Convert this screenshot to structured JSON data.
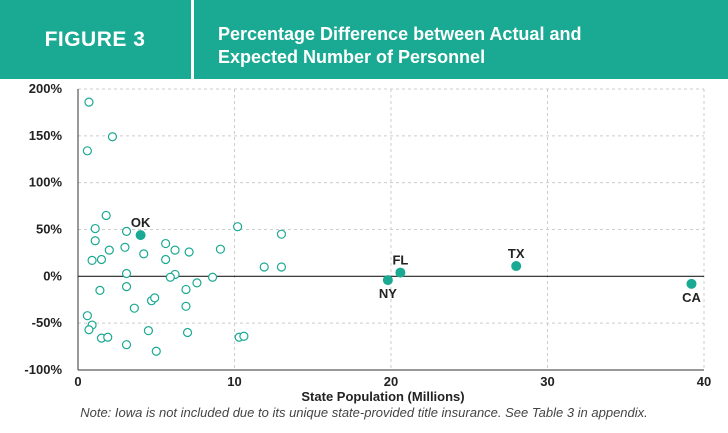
{
  "figure": {
    "label": "FIGURE 3",
    "title_line1": "Percentage Difference between Actual and",
    "title_line2": "Expected Number of Personnel"
  },
  "note": "Note: Iowa is not included due to its unique state-provided title insurance. See Table 3 in appendix.",
  "colors": {
    "brand": "#1aa992",
    "marker": "#1aa992",
    "zero_line": "#222222",
    "grid": "#cccccc"
  },
  "chart_data": {
    "type": "scatter",
    "title": "Percentage Difference between Actual and Expected Number of Personnel",
    "xlabel": "State Population (Millions)",
    "ylabel": "",
    "xlim": [
      0,
      40
    ],
    "ylim": [
      -100,
      200
    ],
    "x_ticks": [
      0,
      10,
      20,
      30,
      40
    ],
    "y_ticks": [
      -100,
      -50,
      0,
      50,
      100,
      150,
      200
    ],
    "y_tick_labels": [
      "-100%",
      "-50%",
      "0%",
      "50%",
      "100%",
      "150%",
      "200%"
    ],
    "x_tick_labels": [
      "0",
      "10",
      "20",
      "30",
      "40"
    ],
    "grid": "dashed",
    "series": [
      {
        "style": "open",
        "points": [
          [
            0.7,
            186
          ],
          [
            0.6,
            134
          ],
          [
            2.2,
            149
          ],
          [
            1.8,
            65
          ],
          [
            1.1,
            51
          ],
          [
            3.1,
            48
          ],
          [
            1.1,
            38
          ],
          [
            0.9,
            17
          ],
          [
            1.5,
            18
          ],
          [
            2.0,
            28
          ],
          [
            3.0,
            31
          ],
          [
            4.2,
            24
          ],
          [
            5.6,
            35
          ],
          [
            6.2,
            28
          ],
          [
            7.1,
            26
          ],
          [
            5.6,
            18
          ],
          [
            9.1,
            29
          ],
          [
            10.2,
            53
          ],
          [
            13.0,
            45
          ],
          [
            11.9,
            10
          ],
          [
            13.0,
            10
          ],
          [
            3.1,
            3
          ],
          [
            6.2,
            2
          ],
          [
            5.9,
            -1
          ],
          [
            8.6,
            -1
          ],
          [
            1.4,
            -15
          ],
          [
            3.1,
            -11
          ],
          [
            6.9,
            -14
          ],
          [
            7.6,
            -7
          ],
          [
            4.7,
            -26
          ],
          [
            4.9,
            -23
          ],
          [
            3.6,
            -34
          ],
          [
            6.9,
            -32
          ],
          [
            0.6,
            -42
          ],
          [
            0.9,
            -52
          ],
          [
            0.7,
            -57
          ],
          [
            4.5,
            -58
          ],
          [
            7.0,
            -60
          ],
          [
            1.5,
            -66
          ],
          [
            1.9,
            -65
          ],
          [
            10.3,
            -65
          ],
          [
            10.6,
            -64
          ],
          [
            3.1,
            -73
          ],
          [
            5.0,
            -80
          ]
        ]
      },
      {
        "style": "filled",
        "points": [
          {
            "label": "OK",
            "x": 4.0,
            "y": 44
          },
          {
            "label": "NY",
            "x": 19.8,
            "y": -4
          },
          {
            "label": "FL",
            "x": 20.6,
            "y": 4
          },
          {
            "label": "TX",
            "x": 28.0,
            "y": 11
          },
          {
            "label": "CA",
            "x": 39.2,
            "y": -8
          }
        ]
      }
    ]
  }
}
